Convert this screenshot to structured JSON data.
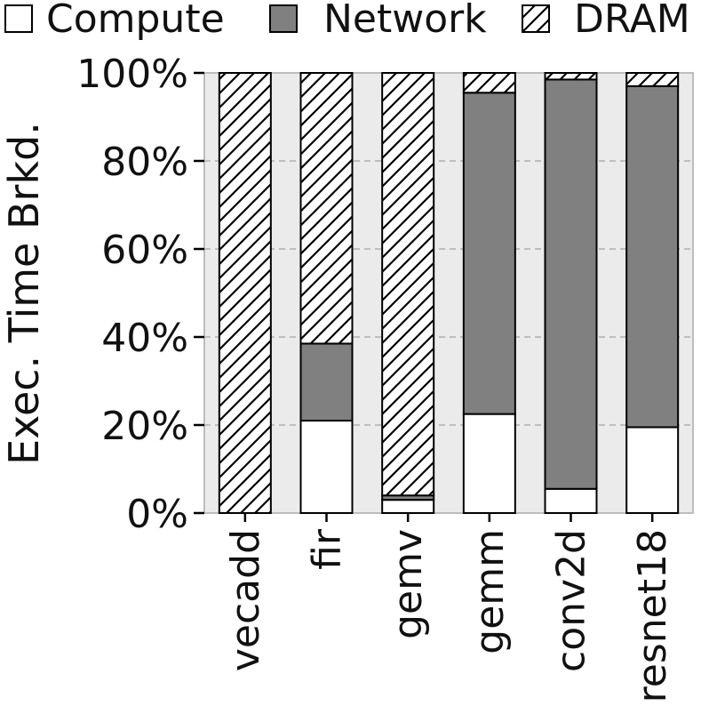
{
  "chart_data": {
    "type": "bar",
    "stacked": true,
    "categories": [
      "vecadd",
      "fir",
      "gemv",
      "gemm",
      "conv2d",
      "resnet18"
    ],
    "series": [
      {
        "name": "Compute",
        "values": [
          0,
          21,
          3,
          22.5,
          5.5,
          19.5
        ],
        "fill": "white"
      },
      {
        "name": "Network",
        "values": [
          0,
          17.5,
          1,
          73,
          93,
          77.5
        ],
        "fill": "gray"
      },
      {
        "name": "DRAM",
        "values": [
          100,
          61.5,
          96,
          4.5,
          1.5,
          3
        ],
        "fill": "hatched"
      }
    ],
    "ylabel": "Exec. Time Brkd.",
    "ylim": [
      0,
      100
    ],
    "yticks": [
      "0%",
      "20%",
      "40%",
      "60%",
      "80%",
      "100%"
    ],
    "grid": "horizontal dashed",
    "legend": "top"
  },
  "colors": {
    "plot_background": "#ebebeb",
    "compute": "#ffffff",
    "network": "#808080",
    "dram_hatch": "#000000",
    "grid": "#b0b0b0"
  }
}
